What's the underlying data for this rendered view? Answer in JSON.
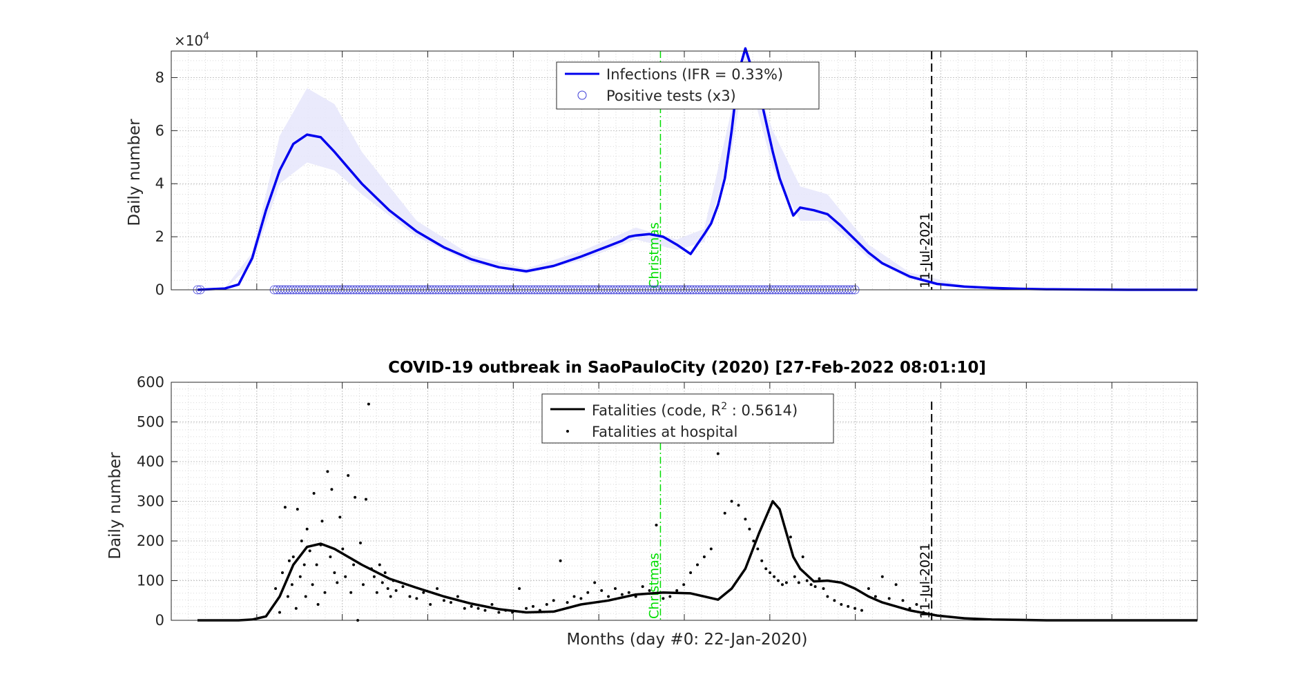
{
  "chart_data": [
    {
      "type": "line",
      "title": "",
      "xlabel": "",
      "ylabel": "Daily number",
      "y_multiplier_label": "×10",
      "y_multiplier_exponent": "4",
      "xlim": [
        0,
        730
      ],
      "ylim": [
        0,
        9
      ],
      "yticks": [
        0,
        2,
        4,
        6,
        8
      ],
      "grid": true,
      "legend_position": "top-center",
      "legend": [
        "Infections (IFR = 0.33%)",
        "Positive tests (x3)"
      ],
      "colors": {
        "infections": "#0000ee",
        "band": "#e6e6fb",
        "tests": "#3b3bd6",
        "christmas": "#00dd00",
        "marker": "#000000"
      },
      "series": [
        {
          "name": "Infections (IFR = 0.33%)",
          "style": "line",
          "x": [
            0,
            20,
            30,
            40,
            50,
            60,
            70,
            80,
            90,
            100,
            110,
            120,
            140,
            160,
            180,
            200,
            220,
            240,
            260,
            280,
            300,
            310,
            315,
            320,
            330,
            340,
            350,
            360,
            370,
            375,
            380,
            385,
            390,
            395,
            400,
            410,
            420,
            425,
            430,
            435,
            440,
            450,
            460,
            470,
            480,
            490,
            500,
            520,
            540,
            560,
            580,
            600,
            620,
            650,
            680,
            710,
            730
          ],
          "y": [
            0,
            0.05,
            0.2,
            1.2,
            3.0,
            4.5,
            5.5,
            5.85,
            5.75,
            5.2,
            4.6,
            4.0,
            3.0,
            2.2,
            1.6,
            1.15,
            0.85,
            0.7,
            0.9,
            1.25,
            1.65,
            1.85,
            2.0,
            2.05,
            2.1,
            2.0,
            1.7,
            1.35,
            2.1,
            2.5,
            3.2,
            4.2,
            6.0,
            8.2,
            9.1,
            7.5,
            5.2,
            4.2,
            3.5,
            2.8,
            3.1,
            3.0,
            2.85,
            2.4,
            1.9,
            1.4,
            1.0,
            0.5,
            0.22,
            0.12,
            0.07,
            0.04,
            0.02,
            0.01,
            0.0,
            0.0,
            0.0
          ]
        },
        {
          "name": "Positive tests (x3)",
          "style": "markers",
          "x_start": 0,
          "x_end": 480,
          "y": 0
        }
      ],
      "uncertainty_band": {
        "x": [
          20,
          40,
          60,
          80,
          100,
          120,
          160,
          200,
          240,
          280,
          320,
          350,
          370,
          390,
          400,
          420,
          440,
          460,
          490,
          520,
          560
        ],
        "lower": [
          0.03,
          1.0,
          4.0,
          4.8,
          4.5,
          3.6,
          2.0,
          1.0,
          0.6,
          1.1,
          1.9,
          1.5,
          1.8,
          5.2,
          8.5,
          4.6,
          2.6,
          2.6,
          1.2,
          0.4,
          0.1
        ],
        "upper": [
          0.07,
          1.4,
          5.8,
          7.6,
          7.0,
          5.2,
          2.6,
          1.3,
          0.8,
          1.45,
          2.35,
          1.9,
          2.3,
          6.8,
          9.0,
          6.0,
          3.9,
          3.6,
          1.7,
          0.65,
          0.16
        ]
      },
      "markers": [
        {
          "label": "Christmas",
          "x": 338,
          "style": "dash-dot"
        },
        {
          "label": "11-Jul-2021",
          "x": 536,
          "style": "dashed"
        }
      ]
    },
    {
      "type": "line",
      "title": "COVID-19 outbreak in SaoPauloCity (2020) [27-Feb-2022 08:01:10]",
      "xlabel": "Months (day #0: 22-Jan-2020)",
      "ylabel": "Daily number",
      "xlim": [
        0,
        730
      ],
      "ylim": [
        0,
        600
      ],
      "yticks": [
        0,
        100,
        200,
        300,
        400,
        500,
        600
      ],
      "grid": true,
      "legend_position": "top-center",
      "legend": [
        "Fatalities (code, R",
        "2",
        " : 0.5614)",
        "Fatalities at hospital"
      ],
      "colors": {
        "fatalities": "#000000",
        "christmas": "#00dd00",
        "marker": "#000000"
      },
      "series": [
        {
          "name": "Fatalities (code, R2 : 0.5614)",
          "style": "line",
          "x": [
            0,
            30,
            40,
            50,
            60,
            70,
            80,
            90,
            100,
            110,
            120,
            140,
            160,
            180,
            200,
            220,
            240,
            260,
            280,
            300,
            320,
            340,
            360,
            380,
            390,
            400,
            410,
            420,
            425,
            430,
            435,
            440,
            450,
            460,
            470,
            480,
            490,
            500,
            520,
            540,
            560,
            580,
            600,
            620,
            650,
            680,
            710,
            730
          ],
          "y": [
            0,
            0,
            2,
            10,
            60,
            140,
            185,
            193,
            180,
            160,
            140,
            105,
            82,
            60,
            42,
            28,
            20,
            22,
            40,
            50,
            65,
            70,
            68,
            52,
            80,
            130,
            220,
            300,
            280,
            220,
            160,
            130,
            98,
            100,
            95,
            80,
            60,
            45,
            25,
            12,
            5,
            2,
            1,
            0,
            0,
            0,
            0,
            0
          ]
        },
        {
          "name": "Fatalities at hospital",
          "style": "points",
          "x": [
            57,
            60,
            62,
            64,
            66,
            67,
            69,
            70,
            72,
            73,
            75,
            76,
            78,
            79,
            80,
            82,
            84,
            85,
            87,
            88,
            90,
            91,
            93,
            95,
            97,
            98,
            100,
            102,
            104,
            106,
            108,
            110,
            112,
            114,
            115,
            117,
            119,
            121,
            123,
            125,
            127,
            129,
            131,
            133,
            135,
            137,
            139,
            141,
            143,
            145,
            150,
            155,
            160,
            165,
            170,
            175,
            180,
            185,
            190,
            195,
            200,
            205,
            210,
            215,
            220,
            225,
            230,
            235,
            240,
            245,
            250,
            255,
            260,
            265,
            270,
            275,
            280,
            285,
            290,
            295,
            300,
            305,
            310,
            315,
            320,
            325,
            330,
            335,
            340,
            345,
            350,
            355,
            360,
            365,
            370,
            375,
            380,
            385,
            390,
            395,
            400,
            403,
            406,
            409,
            412,
            415,
            418,
            421,
            424,
            427,
            430,
            433,
            436,
            439,
            442,
            445,
            448,
            451,
            454,
            457,
            460,
            465,
            470,
            475,
            480,
            485,
            490,
            495,
            500,
            505,
            510,
            515,
            520,
            525,
            530
          ],
          "y": [
            80,
            20,
            120,
            285,
            60,
            150,
            90,
            160,
            30,
            280,
            110,
            200,
            140,
            60,
            230,
            175,
            90,
            320,
            140,
            40,
            190,
            250,
            70,
            375,
            160,
            330,
            120,
            95,
            260,
            180,
            110,
            365,
            70,
            140,
            310,
            0,
            195,
            90,
            305,
            545,
            130,
            110,
            70,
            140,
            95,
            120,
            80,
            60,
            100,
            75,
            85,
            60,
            55,
            70,
            40,
            80,
            50,
            45,
            60,
            30,
            35,
            30,
            25,
            40,
            20,
            25,
            20,
            80,
            30,
            35,
            25,
            40,
            50,
            150,
            45,
            60,
            55,
            70,
            95,
            75,
            60,
            80,
            65,
            70,
            60,
            85,
            75,
            240,
            55,
            60,
            75,
            90,
            120,
            140,
            160,
            180,
            420,
            270,
            300,
            290,
            255,
            230,
            200,
            180,
            150,
            130,
            120,
            110,
            100,
            90,
            95,
            210,
            110,
            95,
            160,
            100,
            90,
            85,
            105,
            80,
            60,
            50,
            40,
            35,
            30,
            25,
            80,
            60,
            110,
            55,
            90,
            50,
            30,
            40,
            20
          ]
        }
      ],
      "markers": [
        {
          "label": "Christmas",
          "x": 338,
          "style": "dash-dot"
        },
        {
          "label": "11-Jul-2021",
          "x": 536,
          "style": "dashed"
        }
      ]
    }
  ]
}
